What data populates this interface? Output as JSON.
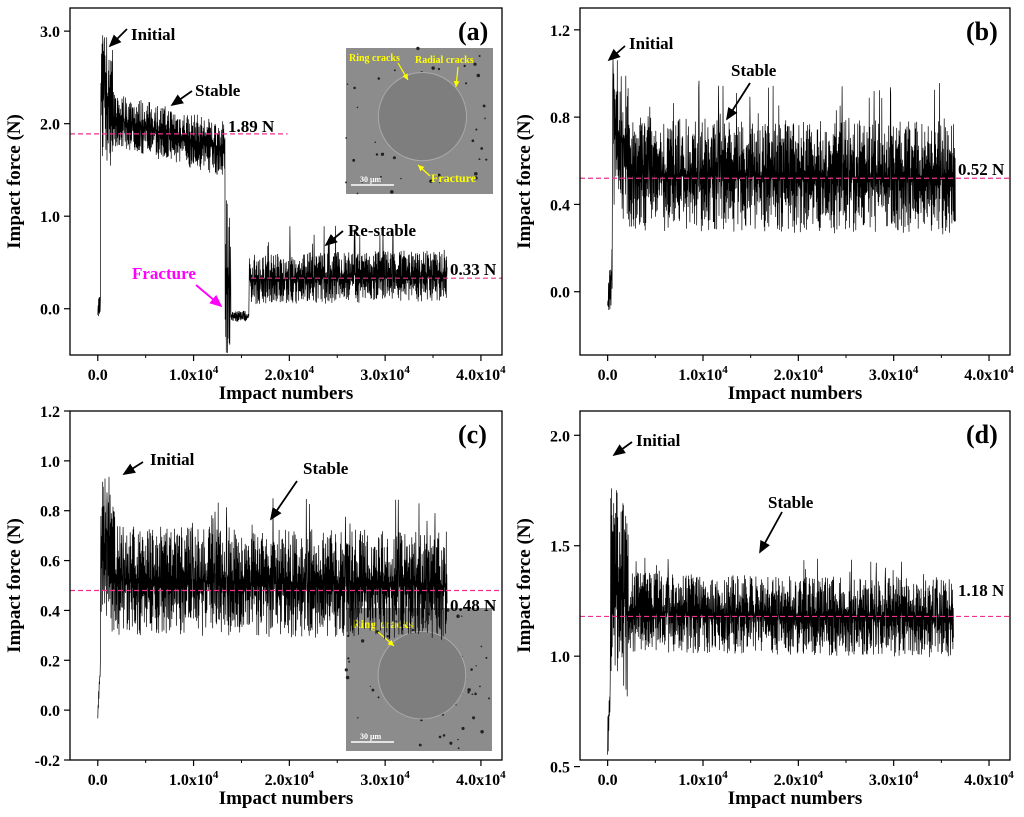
{
  "chart_data": [
    {
      "type": "line",
      "panel": "(a)",
      "xlabel": "Impact numbers",
      "ylabel": "Impact force (N)",
      "xlim": [
        -2900,
        42200
      ],
      "ylim": [
        -0.5,
        3.25
      ],
      "xticks": [
        0,
        10000,
        20000,
        30000,
        40000
      ],
      "xtick_labels": [
        {
          "b": "0.0",
          "e": ""
        },
        {
          "b": "1.0x10",
          "e": "4"
        },
        {
          "b": "2.0x10",
          "e": "4"
        },
        {
          "b": "3.0x10",
          "e": "4"
        },
        {
          "b": "4.0x10",
          "e": "4"
        }
      ],
      "yticks": [
        0,
        1,
        2,
        3
      ],
      "ytick_labels": [
        "0.0",
        "1.0",
        "2.0",
        "3.0"
      ],
      "segments": [
        {
          "x": [
            0,
            300
          ],
          "mean": [
            0.0,
            0.1
          ],
          "amp": 0.15
        },
        {
          "x": [
            300,
            1600
          ],
          "mean": [
            2.3,
            2.2
          ],
          "amp": 0.7,
          "peak": 2.99
        },
        {
          "x": [
            1600,
            13300
          ],
          "mean": [
            2.05,
            1.72
          ],
          "amp": 0.3
        },
        {
          "x": [
            13300,
            13900
          ],
          "mean": [
            0.3,
            0.2
          ],
          "amp": 0.9,
          "peak": 1.33
        },
        {
          "x": [
            13900,
            15800
          ],
          "mean": [
            -0.08,
            -0.08
          ],
          "amp": 0.06
        },
        {
          "x": [
            15800,
            36500
          ],
          "mean": [
            0.32,
            0.36
          ],
          "amp": 0.28,
          "peak": 0.9
        }
      ],
      "reference_lines": [
        {
          "y": 1.89,
          "x": [
            -2900,
            19800
          ],
          "label": "1.89 N"
        },
        {
          "y": 0.33,
          "x": [
            16000,
            42200
          ],
          "label": "0.33 N"
        }
      ],
      "annotations": [
        "Initial",
        "Stable",
        "Re-stable",
        "Fracture"
      ],
      "inset": {
        "labels": [
          "Ring cracks",
          "Radial cracks",
          "Fracture"
        ],
        "scale_bar": "30 μm"
      }
    },
    {
      "type": "line",
      "panel": "(b)",
      "xlabel": "Impact numbers",
      "ylabel": "Impact force (N)",
      "xlim": [
        -2900,
        42200
      ],
      "ylim": [
        -0.29,
        1.3
      ],
      "xticks": [
        0,
        10000,
        20000,
        30000,
        40000
      ],
      "xtick_labels": [
        {
          "b": "0.0",
          "e": ""
        },
        {
          "b": "1.0x10",
          "e": "4"
        },
        {
          "b": "2.0x10",
          "e": "4"
        },
        {
          "b": "3.0x10",
          "e": "4"
        },
        {
          "b": "4.0x10",
          "e": "4"
        }
      ],
      "yticks": [
        0,
        0.4,
        0.8,
        1.2
      ],
      "ytick_labels": [
        "0.0",
        "0.4",
        "0.8",
        "1.2"
      ],
      "segments": [
        {
          "x": [
            0,
            500
          ],
          "mean": [
            -0.05,
            0.1
          ],
          "amp": 0.13
        },
        {
          "x": [
            500,
            2200
          ],
          "mean": [
            0.75,
            0.65
          ],
          "amp": 0.35,
          "peak": 1.14
        },
        {
          "x": [
            2200,
            36500
          ],
          "mean": [
            0.54,
            0.52
          ],
          "amp": 0.26,
          "peak": 0.97
        }
      ],
      "reference_lines": [
        {
          "y": 0.52,
          "x": [
            -2900,
            42200
          ],
          "label": "0.52 N"
        }
      ],
      "annotations": [
        "Initial",
        "Stable"
      ]
    },
    {
      "type": "line",
      "panel": "(c)",
      "xlabel": "Impact numbers",
      "ylabel": "Impact force (N)",
      "xlim": [
        -2900,
        42200
      ],
      "ylim": [
        -0.2,
        1.2
      ],
      "xticks": [
        0,
        10000,
        20000,
        30000,
        40000
      ],
      "xtick_labels": [
        {
          "b": "0.0",
          "e": ""
        },
        {
          "b": "1.0x10",
          "e": "4"
        },
        {
          "b": "2.0x10",
          "e": "4"
        },
        {
          "b": "3.0x10",
          "e": "4"
        },
        {
          "b": "4.0x10",
          "e": "4"
        }
      ],
      "yticks": [
        -0.2,
        0,
        0.2,
        0.4,
        0.6,
        0.8,
        1.0,
        1.2
      ],
      "ytick_labels": [
        "-0.2",
        "0.0",
        "0.2",
        "0.4",
        "0.6",
        "0.8",
        "1.0",
        "1.2"
      ],
      "segments": [
        {
          "x": [
            0,
            300
          ],
          "mean": [
            -0.03,
            0.2
          ],
          "amp": 0.05
        },
        {
          "x": [
            300,
            1800
          ],
          "mean": [
            0.65,
            0.6
          ],
          "amp": 0.3,
          "peak": 1.03
        },
        {
          "x": [
            1800,
            36500
          ],
          "mean": [
            0.52,
            0.5
          ],
          "amp": 0.22,
          "peak": 0.85
        }
      ],
      "reference_lines": [
        {
          "y": 0.48,
          "x": [
            -2900,
            42200
          ],
          "label": "0.48 N"
        }
      ],
      "annotations": [
        "Initial",
        "Stable"
      ],
      "inset": {
        "labels": [
          "Ring cracks"
        ],
        "scale_bar": "30 μm"
      }
    },
    {
      "type": "line",
      "panel": "(d)",
      "xlabel": "Impact numbers",
      "ylabel": "Impact force (N)",
      "xlim": [
        -2900,
        42200
      ],
      "ylim": [
        0.53,
        2.11
      ],
      "xticks": [
        0,
        10000,
        20000,
        30000,
        40000
      ],
      "xtick_labels": [
        {
          "b": "0.0",
          "e": ""
        },
        {
          "b": "1.0x10",
          "e": "4"
        },
        {
          "b": "2.0x10",
          "e": "4"
        },
        {
          "b": "3.0x10",
          "e": "4"
        },
        {
          "b": "4.0x10",
          "e": "4"
        }
      ],
      "yticks": [
        0.5,
        1.0,
        1.5,
        2.0
      ],
      "ytick_labels": [
        "0.5",
        "1.0",
        "1.5",
        "2.0"
      ],
      "segments": [
        {
          "x": [
            0,
            300
          ],
          "mean": [
            0.6,
            0.9
          ],
          "amp": 0.1
        },
        {
          "x": [
            300,
            2200
          ],
          "mean": [
            1.35,
            1.25
          ],
          "amp": 0.45,
          "peak": 1.96
        },
        {
          "x": [
            2200,
            36300
          ],
          "mean": [
            1.2,
            1.17
          ],
          "amp": 0.18,
          "peak": 1.45
        }
      ],
      "reference_lines": [
        {
          "y": 1.18,
          "x": [
            -2900,
            42200
          ],
          "label": "1.18 N"
        }
      ],
      "annotations": [
        "Initial",
        "Stable"
      ]
    }
  ],
  "colors": {
    "trace": "#000000",
    "reference": "#e8338f",
    "fracture": "#ff00ff",
    "inset_text": "#ffff00"
  }
}
